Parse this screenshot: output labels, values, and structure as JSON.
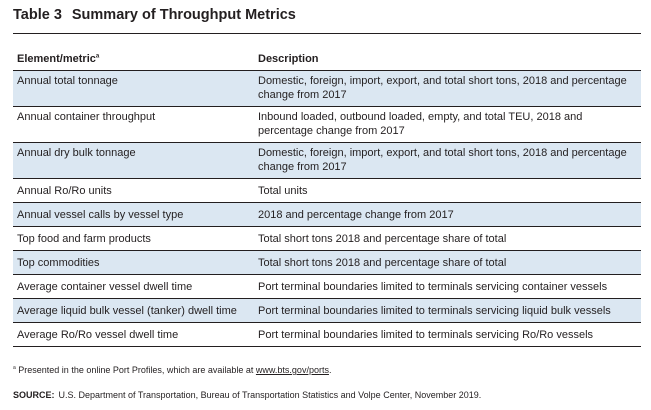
{
  "table": {
    "number": "Table 3",
    "title": "Summary of Throughput Metrics",
    "headers": {
      "metric": "Element/metric",
      "metric_note": "a",
      "description": "Description"
    },
    "rows": [
      {
        "metric": "Annual total tonnage",
        "description": "Domestic, foreign, import, export, and total short tons, 2018 and percentage change from 2017"
      },
      {
        "metric": "Annual container throughput",
        "description": "Inbound loaded, outbound loaded, empty, and total TEU, 2018 and percentage change from 2017"
      },
      {
        "metric": "Annual dry bulk tonnage",
        "description": "Domestic, foreign, import, export, and total short tons, 2018 and percentage change from 2017"
      },
      {
        "metric": "Annual Ro/Ro units",
        "description": "Total units"
      },
      {
        "metric": "Annual vessel calls by vessel type",
        "description": "2018 and percentage change from 2017"
      },
      {
        "metric": "Top food and farm products",
        "description": "Total short tons 2018 and percentage share of total"
      },
      {
        "metric": "Top commodities",
        "description": "Total short tons 2018 and percentage share of total"
      },
      {
        "metric": "Average container vessel dwell time",
        "description": "Port terminal boundaries limited to terminals servicing container vessels"
      },
      {
        "metric": "Average liquid bulk vessel (tanker) dwell time",
        "description": "Port terminal boundaries limited to terminals servicing liquid bulk vessels"
      },
      {
        "metric": "Average Ro/Ro vessel dwell time",
        "description": "Port terminal boundaries limited to terminals servicing Ro/Ro vessels"
      }
    ]
  },
  "footnote": {
    "mark": "a",
    "text": " Presented in the online Port Profiles, which are available at ",
    "link_text": "www.bts.gov/ports",
    "after": "."
  },
  "source": {
    "label": "SOURCE:",
    "text": "U.S. Department of Transportation, Bureau of Transportation Statistics and Volpe Center, November 2019."
  },
  "colors": {
    "shade": "#dbe7f2",
    "text": "#231f20"
  }
}
